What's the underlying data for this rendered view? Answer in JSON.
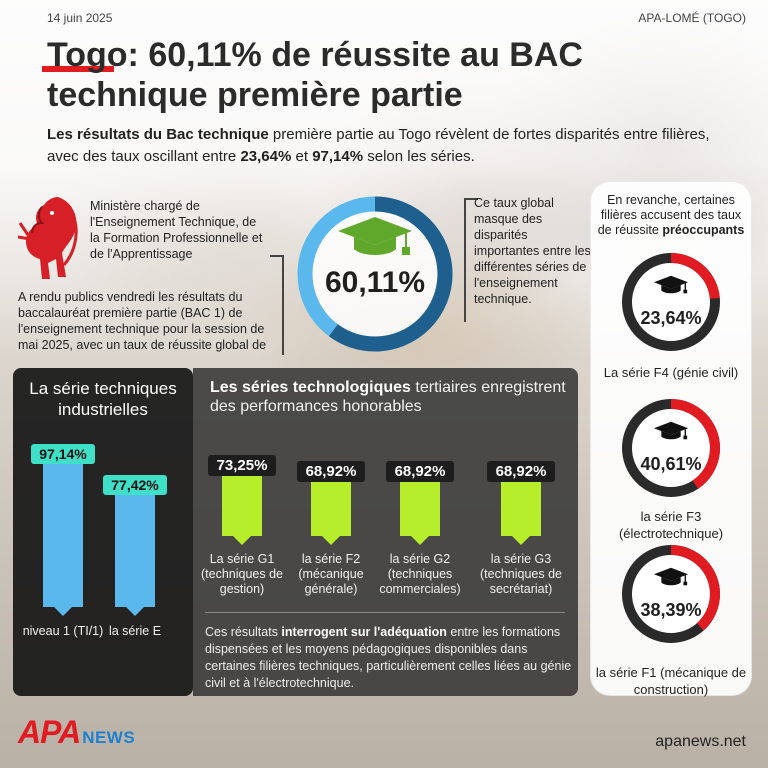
{
  "header": {
    "date": "14 juin 2025",
    "source": "APA-LOMÉ (TOGO)",
    "title": "Togo: 60,11% de réussite au BAC technique première partie"
  },
  "intro": {
    "bold": "Les résultats du Bac technique",
    "text1": " première partie au Togo révèlent de fortes disparités entre filières, avec des taux oscillant entre ",
    "low": "23,64%",
    "text2": " et ",
    "high": "97,14%",
    "text3": " selon les séries."
  },
  "ministry": {
    "name": "Ministère chargé de l'Enseignement Technique, de la Formation Professionnelle et de l'Apprentissage",
    "announcement": "A rendu publics vendredi les résultats du baccalauréat première partie (BAC 1) de l'enseignement technique pour la session de mai 2025, avec un taux de réussite global de"
  },
  "global": {
    "rate": "60,11%",
    "rate_fraction": 0.6011,
    "note": "Ce taux global masque des disparités importantes entre les différentes séries de l'enseignement technique."
  },
  "industrial": {
    "title": "La série techniques industrielles",
    "bars": [
      {
        "value_label": "97,14%",
        "value": 97.14,
        "category": "niveau 1 (TI/1)"
      },
      {
        "value_label": "77,42%",
        "value": 77.42,
        "category": "la série E"
      }
    ]
  },
  "tertiary": {
    "title_bold": "Les séries technologiques",
    "title_rest": " tertiaires enregistrent des performances honorables",
    "bars": [
      {
        "value_label": "73,25%",
        "value": 73.25,
        "category": "La série G1 (techniques de gestion)"
      },
      {
        "value_label": "68,92%",
        "value": 68.92,
        "category": "la série F2 (mécanique générale)"
      },
      {
        "value_label": "68,92%",
        "value": 68.92,
        "category": "la série G2 (techniques commerciales)"
      },
      {
        "value_label": "68,92%",
        "value": 68.92,
        "category": "la série G3 (techniques de secrétariat)"
      }
    ],
    "conclusion_pre": "Ces résultats ",
    "conclusion_bold": "interrogent sur l'adéquation",
    "conclusion_post": " entre les formations dispensées et les moyens pédagogiques disponibles dans certaines filières techniques, particulièrement celles liées au génie civil et à l'électrotechnique."
  },
  "concerning": {
    "intro": "En revanche, certaines filières accusent des taux de réussite",
    "intro_bold": "préoccupants",
    "items": [
      {
        "value_label": "23,64%",
        "value": 23.64,
        "label": "La série F4 (génie civil)"
      },
      {
        "value_label": "40,61%",
        "value": 40.61,
        "label": "la série F3 (électrotechnique)"
      },
      {
        "value_label": "38,39%",
        "value": 38.39,
        "label": "la série F1 (mécanique de construction)"
      }
    ]
  },
  "footer": {
    "logo_apa": "APA",
    "logo_news": "NEWS",
    "site": "apanews.net"
  },
  "colors": {
    "accent_red": "#e01b22",
    "donut_blue": "#5ab8ec",
    "donut_dark": "#1f5f8e",
    "bar_blue": "#5ab8ec",
    "bar_green": "#b6ee2c",
    "cap_green": "#5fa82b"
  },
  "icons": [
    "lion-emblem-icon",
    "graduation-cap-icon"
  ]
}
